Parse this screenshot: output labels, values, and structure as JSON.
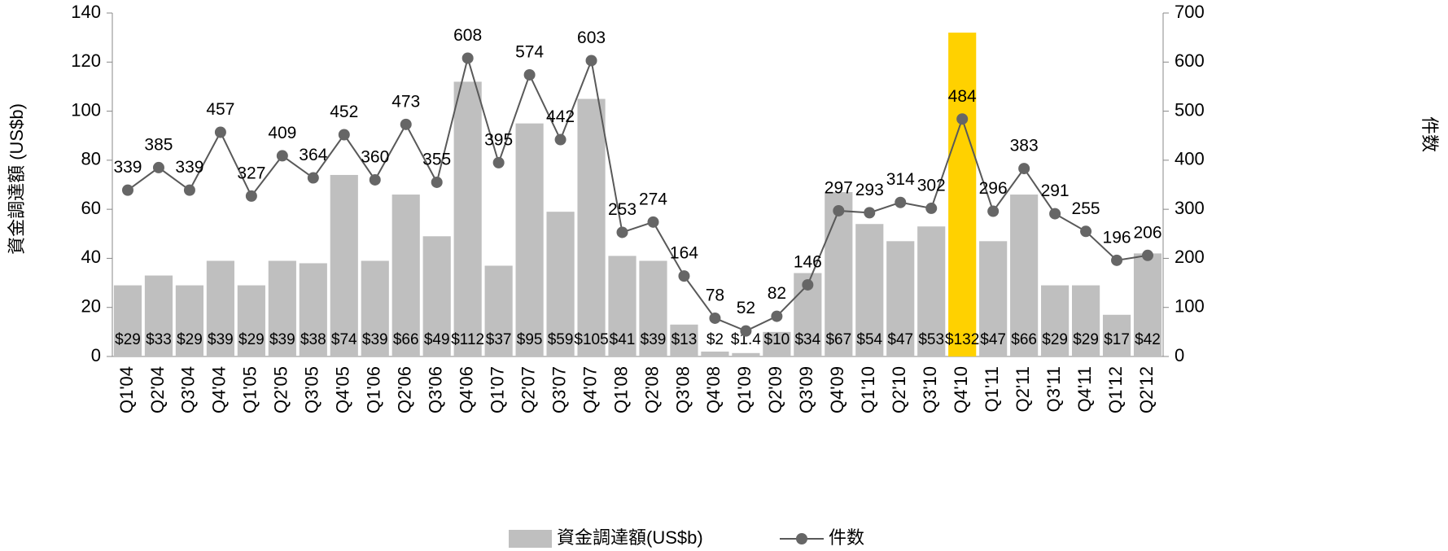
{
  "chart_data": {
    "type": "bar+line",
    "categories": [
      "Q1'04",
      "Q2'04",
      "Q3'04",
      "Q4'04",
      "Q1'05",
      "Q2'05",
      "Q3'05",
      "Q4'05",
      "Q1'06",
      "Q2'06",
      "Q3'06",
      "Q4'06",
      "Q1'07",
      "Q2'07",
      "Q3'07",
      "Q4'07",
      "Q1'08",
      "Q2'08",
      "Q3'08",
      "Q4'08",
      "Q1'09",
      "Q2'09",
      "Q3'09",
      "Q4'09",
      "Q1'10",
      "Q2'10",
      "Q3'10",
      "Q4'10",
      "Q1'11",
      "Q2'11",
      "Q3'11",
      "Q4'11",
      "Q1'12",
      "Q2'12"
    ],
    "series": [
      {
        "name": "資金調達額(US$b)",
        "type": "bar",
        "color": "#bfbfbf",
        "colors": [
          "#bfbfbf",
          "#bfbfbf",
          "#bfbfbf",
          "#bfbfbf",
          "#bfbfbf",
          "#bfbfbf",
          "#bfbfbf",
          "#bfbfbf",
          "#bfbfbf",
          "#bfbfbf",
          "#bfbfbf",
          "#bfbfbf",
          "#bfbfbf",
          "#bfbfbf",
          "#bfbfbf",
          "#bfbfbf",
          "#bfbfbf",
          "#bfbfbf",
          "#bfbfbf",
          "#bfbfbf",
          "#bfbfbf",
          "#bfbfbf",
          "#bfbfbf",
          "#bfbfbf",
          "#bfbfbf",
          "#bfbfbf",
          "#bfbfbf",
          "#ffd100",
          "#bfbfbf",
          "#bfbfbf",
          "#bfbfbf",
          "#bfbfbf",
          "#bfbfbf",
          "#bfbfbf"
        ],
        "values": [
          29,
          33,
          29,
          39,
          29,
          39,
          38,
          74,
          39,
          66,
          49,
          112,
          37,
          95,
          59,
          105,
          41,
          39,
          13,
          2,
          1.4,
          10,
          34,
          67,
          54,
          47,
          53,
          132,
          47,
          66,
          29,
          29,
          17,
          42
        ],
        "value_labels": [
          "$29",
          "$33",
          "$29",
          "$39",
          "$29",
          "$39",
          "$38",
          "$74",
          "$39",
          "$66",
          "$49",
          "$112",
          "$37",
          "$95",
          "$59",
          "$105",
          "$41",
          "$39",
          "$13",
          "$2",
          "$1.4",
          "$10",
          "$34",
          "$67",
          "$54",
          "$47",
          "$53",
          "$132",
          "$47",
          "$66",
          "$29",
          "$29",
          "$17",
          "$42"
        ]
      },
      {
        "name": "件数",
        "type": "line",
        "axis": "y2",
        "color": "#595959",
        "values": [
          339,
          385,
          339,
          457,
          327,
          409,
          364,
          452,
          360,
          473,
          355,
          608,
          395,
          574,
          442,
          603,
          253,
          274,
          164,
          78,
          52,
          82,
          146,
          297,
          293,
          314,
          302,
          484,
          296,
          383,
          291,
          255,
          196,
          206
        ]
      }
    ],
    "ylabel": "資金調達額 (US$b)",
    "y2label": "件数",
    "ylim": [
      0,
      140
    ],
    "yticks": [
      0,
      20,
      40,
      60,
      80,
      100,
      120,
      140
    ],
    "y2lim": [
      0,
      700
    ],
    "y2ticks": [
      0,
      100,
      200,
      300,
      400,
      500,
      600,
      700
    ],
    "legend": "bottom"
  }
}
